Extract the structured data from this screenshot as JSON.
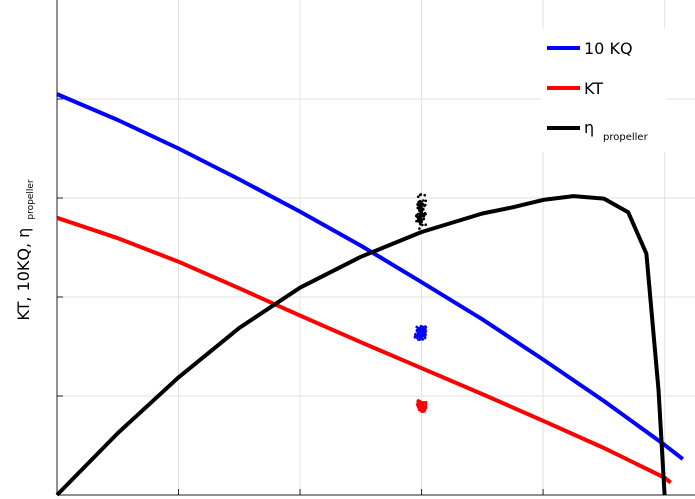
{
  "chart_data": {
    "type": "line",
    "title": "",
    "xlabel": "",
    "ylabel": "KT, 10KQ, η propeller",
    "ylabel_main": "KT, 10KQ, η",
    "ylabel_sub": "propeller",
    "xlim": [
      0,
      1.05
    ],
    "ylim": [
      0,
      0.8
    ],
    "x_ticks": [
      0.2,
      0.4,
      0.6,
      0.8,
      1.0
    ],
    "y_ticks": [
      0.16,
      0.32,
      0.48,
      0.64
    ],
    "grid": true,
    "legend_position": "top-right",
    "series": [
      {
        "name": "10 KQ",
        "label_main": "10 KQ",
        "color": "#0000ff",
        "x": [
          0,
          0.1,
          0.2,
          0.3,
          0.4,
          0.5,
          0.6,
          0.7,
          0.8,
          0.9,
          1.0,
          1.03
        ],
        "y": [
          0.648,
          0.606,
          0.56,
          0.51,
          0.458,
          0.403,
          0.344,
          0.284,
          0.219,
          0.152,
          0.081,
          0.058
        ]
      },
      {
        "name": "KT",
        "label_main": "KT",
        "color": "#ff0000",
        "x": [
          0,
          0.1,
          0.2,
          0.3,
          0.4,
          0.5,
          0.6,
          0.7,
          0.8,
          0.9,
          1.0,
          1.01
        ],
        "y": [
          0.448,
          0.415,
          0.377,
          0.334,
          0.29,
          0.247,
          0.205,
          0.163,
          0.12,
          0.076,
          0.028,
          0.02
        ]
      },
      {
        "name": "η propeller",
        "label_main": "η",
        "label_sub": "propeller",
        "color": "#000000",
        "x": [
          0,
          0.1,
          0.2,
          0.3,
          0.4,
          0.5,
          0.6,
          0.7,
          0.75,
          0.8,
          0.85,
          0.9,
          0.94,
          0.97,
          0.99,
          1.0
        ],
        "y": [
          0.0,
          0.1,
          0.19,
          0.27,
          0.335,
          0.385,
          0.425,
          0.455,
          0.465,
          0.477,
          0.483,
          0.479,
          0.457,
          0.39,
          0.17,
          0.0
        ]
      }
    ],
    "measurements": [
      {
        "color": "#000000",
        "x_center": 0.6,
        "y_center": 0.4575,
        "x_spread": 0.01,
        "y_spread": 0.035
      },
      {
        "color": "#0000ff",
        "x_center": 0.6,
        "y_center": 0.2615,
        "x_spread": 0.012,
        "y_spread": 0.015
      },
      {
        "color": "#ff0000",
        "x_center": 0.6,
        "y_center": 0.145,
        "x_spread": 0.01,
        "y_spread": 0.013
      }
    ]
  }
}
